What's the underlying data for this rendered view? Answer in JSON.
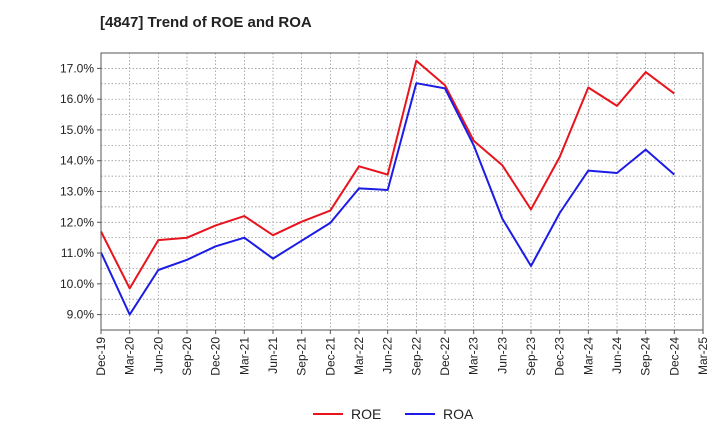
{
  "chart_data": {
    "type": "line",
    "title": "[4847]  Trend of ROE and ROA",
    "xlabel": "",
    "ylabel": "",
    "x": [
      "Dec-19",
      "Mar-20",
      "Jun-20",
      "Sep-20",
      "Dec-20",
      "Mar-21",
      "Jun-21",
      "Sep-21",
      "Dec-21",
      "Mar-22",
      "Jun-22",
      "Sep-22",
      "Dec-22",
      "Mar-23",
      "Jun-23",
      "Sep-23",
      "Dec-23",
      "Mar-24",
      "Jun-24",
      "Sep-24",
      "Dec-24",
      "Mar-25"
    ],
    "yticks": [
      "9.0%",
      "10.0%",
      "11.0%",
      "12.0%",
      "13.0%",
      "14.0%",
      "15.0%",
      "16.0%",
      "17.0%"
    ],
    "ylim": [
      8.5,
      17.5
    ],
    "grid": true,
    "legend_position": "bottom",
    "series": [
      {
        "name": "ROE",
        "color": "#e8141d",
        "values": [
          11.7,
          9.85,
          11.42,
          11.5,
          11.9,
          12.2,
          11.58,
          12.02,
          12.38,
          13.82,
          13.55,
          17.25,
          16.45,
          14.65,
          13.85,
          12.42,
          14.12,
          16.38,
          15.78,
          16.88,
          16.18,
          null
        ]
      },
      {
        "name": "ROA",
        "color": "#1c1ce6",
        "values": [
          11.02,
          9.0,
          10.45,
          10.78,
          11.22,
          11.5,
          10.82,
          11.4,
          11.98,
          13.1,
          13.05,
          16.52,
          16.35,
          14.5,
          12.12,
          10.58,
          12.3,
          13.68,
          13.6,
          14.36,
          13.55,
          null
        ]
      }
    ]
  }
}
